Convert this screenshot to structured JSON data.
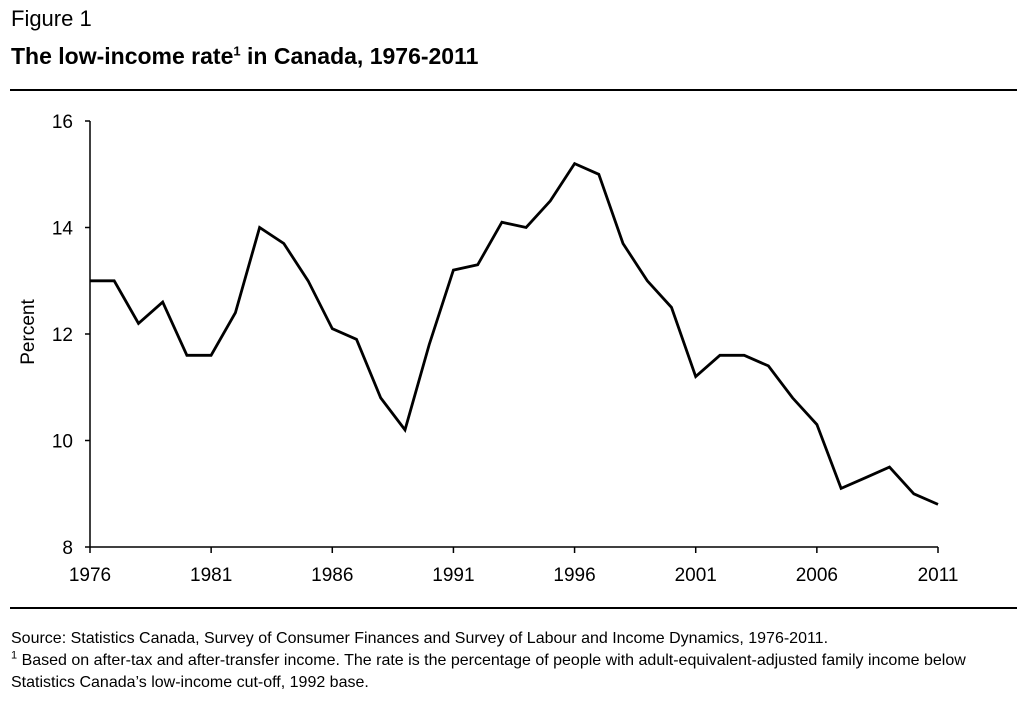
{
  "header": {
    "figure_label": "Figure 1",
    "title_main": "The low-income rate",
    "title_footnote_mark": "1",
    "title_rest": " in Canada, 1976-2011"
  },
  "chart_data": {
    "type": "line",
    "title": "The low-income rate in Canada, 1976-2011",
    "xlabel": "",
    "ylabel": "Percent",
    "xlim": [
      1976,
      2011
    ],
    "ylim": [
      8,
      16
    ],
    "x_ticks": [
      1976,
      1981,
      1986,
      1991,
      1996,
      2001,
      2006,
      2011
    ],
    "y_ticks": [
      8,
      10,
      12,
      14,
      16
    ],
    "grid": false,
    "legend": "none",
    "line_color": "#000000",
    "series": [
      {
        "x": [
          1976,
          1977,
          1978,
          1979,
          1980,
          1981,
          1982,
          1983,
          1984,
          1985,
          1986,
          1987,
          1988,
          1989,
          1990,
          1991,
          1992,
          1993,
          1994,
          1995,
          1996,
          1997,
          1998,
          1999,
          2000,
          2001,
          2002,
          2003,
          2004,
          2005,
          2006,
          2007,
          2008,
          2009,
          2010,
          2011
        ],
        "values": [
          13.0,
          13.0,
          12.2,
          12.6,
          11.6,
          11.6,
          12.4,
          14.0,
          13.7,
          13.0,
          12.1,
          11.9,
          10.8,
          10.2,
          11.8,
          13.2,
          13.3,
          14.1,
          14.0,
          14.5,
          15.2,
          15.0,
          13.7,
          13.0,
          12.5,
          11.2,
          11.6,
          11.6,
          11.4,
          10.8,
          10.3,
          9.1,
          9.3,
          9.5,
          9.0,
          8.8
        ]
      }
    ]
  },
  "notes": {
    "source": "Source: Statistics Canada, Survey of Consumer Finances and Survey of Labour and Income Dynamics, 1976-2011.",
    "footnote_mark": "1",
    "footnote": " Based on after-tax and after-transfer income. The rate is the percentage of people with adult-equivalent-adjusted family income below Statistics Canada’s low-income cut-off, 1992 base."
  }
}
